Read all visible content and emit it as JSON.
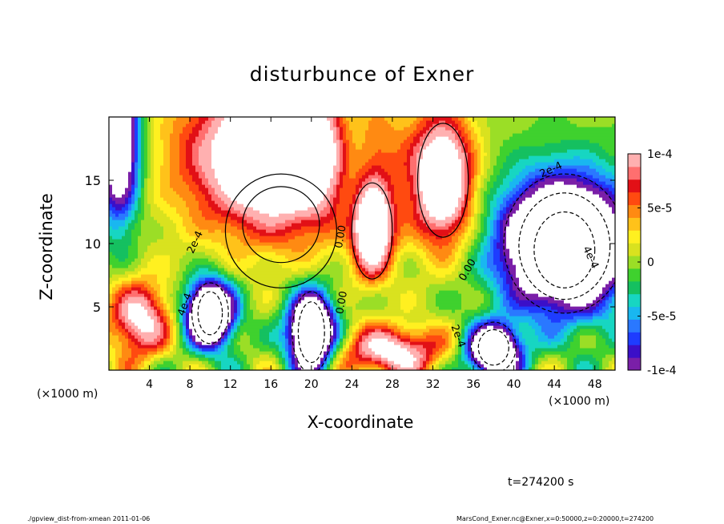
{
  "title": "disturbunce of Exner",
  "footer": {
    "left": "./gpview_dist-from-xmean  2011-01-06",
    "right": "MarsCond_Exner.nc@Exner,x=0:50000,z=0:20000,t=274200"
  },
  "timestamp": "t=274200 s",
  "chart_data": {
    "type": "heatmap",
    "title": "disturbunce of Exner",
    "xlabel": "X-coordinate",
    "ylabel": "Z-coordinate",
    "x_unit": "(×1000 m)",
    "xlim": [
      0,
      50
    ],
    "ylim": [
      0,
      20
    ],
    "x_ticks": [
      4,
      8,
      12,
      16,
      20,
      24,
      28,
      32,
      36,
      40,
      44,
      48
    ],
    "y_ticks": [
      5,
      10,
      15
    ],
    "colorbar": {
      "range": [
        -0.0001,
        0.0001
      ],
      "ticks": [
        {
          "value": 0.0001,
          "label": "1e-4"
        },
        {
          "value": 5e-05,
          "label": "5e-5"
        },
        {
          "value": 0,
          "label": "0"
        },
        {
          "value": -5e-05,
          "label": "-5e-5"
        },
        {
          "value": -0.0001,
          "label": "-1e-4"
        }
      ],
      "colors": [
        "#7a1fa8",
        "#3b0fc8",
        "#1e3cff",
        "#2a78ff",
        "#19b7f0",
        "#17d6c2",
        "#15c060",
        "#3fd12e",
        "#9bde26",
        "#d9e21f",
        "#fff020",
        "#ffc21a",
        "#ff8a12",
        "#ff4a10",
        "#e21016",
        "#ff6f6f",
        "#ffb0b0"
      ]
    },
    "contour_labels": [
      {
        "text": "2e-4",
        "x": 8.8,
        "z": 10.0,
        "angle": -65
      },
      {
        "text": "0.00",
        "x": 23.2,
        "z": 10.5,
        "angle": -80
      },
      {
        "text": "0.00",
        "x": 23.3,
        "z": 5.3,
        "angle": -80
      },
      {
        "text": "0.00",
        "x": 35.7,
        "z": 7.8,
        "angle": -60
      },
      {
        "text": "2e-4",
        "x": 34.2,
        "z": 2.6,
        "angle": 70
      },
      {
        "text": "2e-4",
        "x": 43.8,
        "z": 15.6,
        "angle": -25
      },
      {
        "text": "4e-4",
        "x": 47.3,
        "z": 8.8,
        "angle": 65
      },
      {
        "text": "4e-4",
        "x": 7.8,
        "z": 5.1,
        "angle": -70
      }
    ]
  }
}
